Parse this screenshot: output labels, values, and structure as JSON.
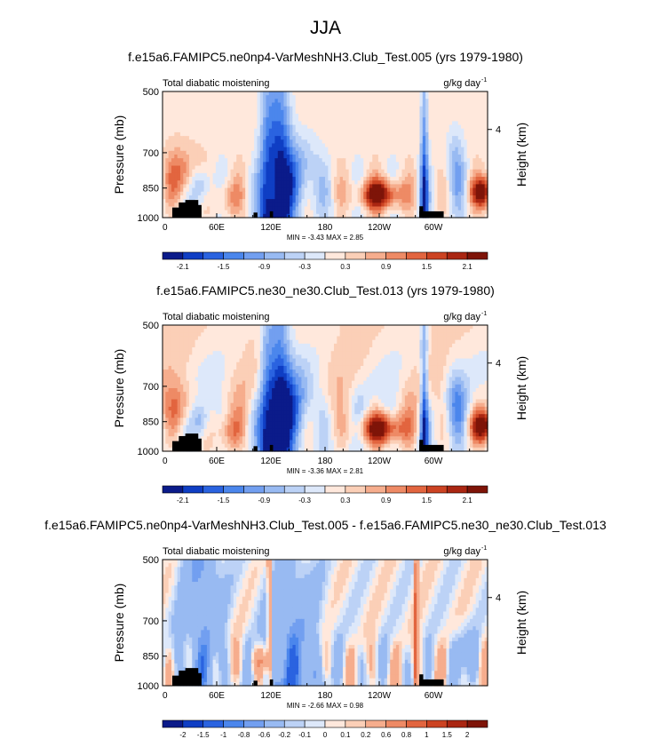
{
  "main_title": "JJA",
  "chart_data": [
    {
      "type": "heatmap",
      "title": "f.e15a6.FAMIPC5.ne0np4-VarMeshNH3.Club_Test.005 (yrs 1979-1980)",
      "left_string": "Total diabatic moistening",
      "right_string": "g/kg day",
      "right_string_sup": "-1",
      "ylabel": "Pressure (mb)",
      "ylabel_right": "Height (km)",
      "yticks": [
        "500",
        "700",
        "850",
        "1000"
      ],
      "yticks_right": [
        "4"
      ],
      "xticks": [
        "0",
        "60E",
        "120E",
        "180",
        "120W",
        "60W"
      ],
      "stats": "MIN =  -3.43  MAX =  2.85",
      "colorbar_labels": [
        "-2.1",
        "-1.5",
        "-0.9",
        "-0.3",
        "0.3",
        "0.9",
        "1.5",
        "2.1"
      ],
      "colorbar_levels": [
        -2.4,
        -2.1,
        -1.8,
        -1.5,
        -1.2,
        -0.9,
        -0.6,
        -0.3,
        0,
        0.3,
        0.6,
        0.9,
        1.2,
        1.5,
        1.8,
        2.1,
        2.4
      ],
      "value_range": [
        -3.43,
        2.85
      ]
    },
    {
      "type": "heatmap",
      "title": "f.e15a6.FAMIPC5.ne30_ne30.Club_Test.013 (yrs 1979-1980)",
      "left_string": "Total diabatic moistening",
      "right_string": "g/kg day",
      "right_string_sup": "-1",
      "ylabel": "Pressure (mb)",
      "ylabel_right": "Height (km)",
      "yticks": [
        "500",
        "700",
        "850",
        "1000"
      ],
      "yticks_right": [
        "4"
      ],
      "xticks": [
        "0",
        "60E",
        "120E",
        "180",
        "120W",
        "60W"
      ],
      "stats": "MIN =  -3.36  MAX =  2.81",
      "colorbar_labels": [
        "-2.1",
        "-1.5",
        "-0.9",
        "-0.3",
        "0.3",
        "0.9",
        "1.5",
        "2.1"
      ],
      "colorbar_levels": [
        -2.4,
        -2.1,
        -1.8,
        -1.5,
        -1.2,
        -0.9,
        -0.6,
        -0.3,
        0,
        0.3,
        0.6,
        0.9,
        1.2,
        1.5,
        1.8,
        2.1,
        2.4
      ],
      "value_range": [
        -3.36,
        2.81
      ]
    },
    {
      "type": "heatmap",
      "title": "f.e15a6.FAMIPC5.ne0np4-VarMeshNH3.Club_Test.005 - f.e15a6.FAMIPC5.ne30_ne30.Club_Test.013",
      "left_string": "Total diabatic moistening",
      "right_string": "g/kg day",
      "right_string_sup": "-1",
      "ylabel": "Pressure (mb)",
      "ylabel_right": "Height (km)",
      "yticks": [
        "500",
        "700",
        "850",
        "1000"
      ],
      "yticks_right": [
        "4"
      ],
      "xticks": [
        "0",
        "60E",
        "120E",
        "180",
        "120W",
        "60W"
      ],
      "stats": "MIN =  -2.66  MAX =  0.98",
      "colorbar_labels": [
        "-2",
        "-1.5",
        "-1",
        "-0.8",
        "-0.6",
        "-0.2",
        "-0.1",
        "0",
        "0.1",
        "0.2",
        "0.6",
        "0.8",
        "1",
        "1.5",
        "2"
      ],
      "colorbar_levels": [
        -2.5,
        -2,
        -1.5,
        -1,
        -0.8,
        -0.6,
        -0.2,
        -0.1,
        0,
        0.1,
        0.2,
        0.6,
        0.8,
        1,
        1.5,
        2,
        2.5
      ],
      "value_range": [
        -2.66,
        0.98
      ]
    }
  ],
  "palette": [
    "#0b1b8a",
    "#0f3ec4",
    "#2a63e0",
    "#4b86ec",
    "#729ff0",
    "#98baf2",
    "#bcd2f6",
    "#dde8fa",
    "#ffe8dc",
    "#fbcfb7",
    "#f6ad8d",
    "#ee8a65",
    "#e2653f",
    "#cc4322",
    "#aa2612",
    "#7e1408"
  ]
}
